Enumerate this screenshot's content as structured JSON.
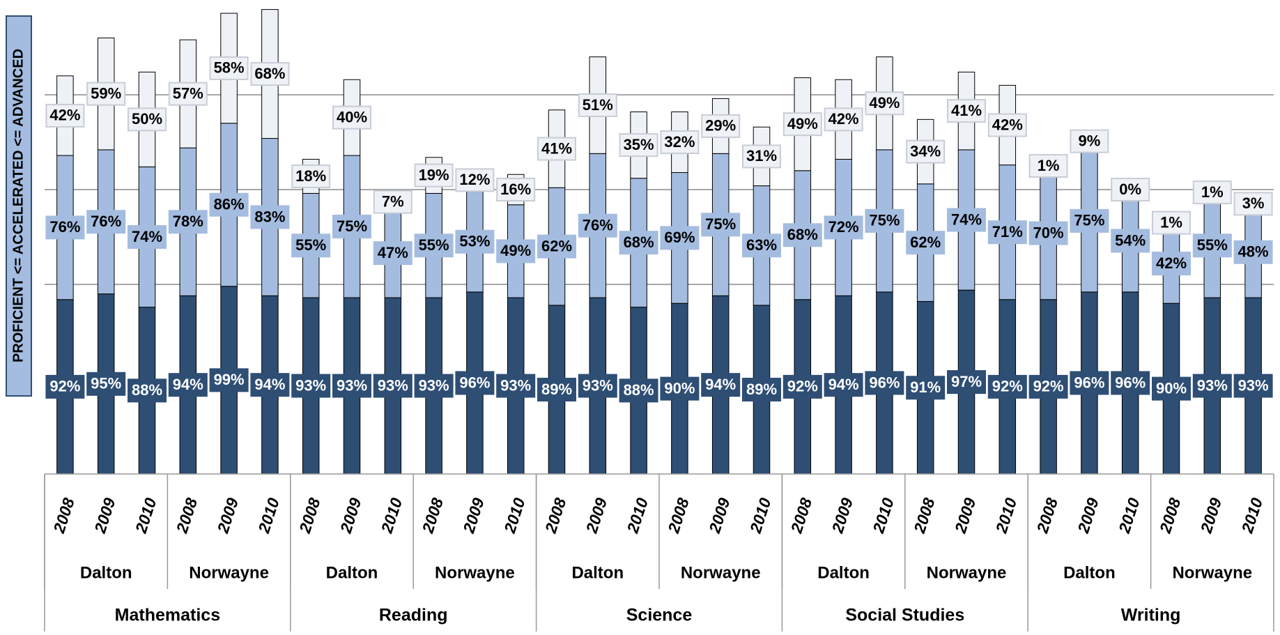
{
  "chart_data": {
    "type": "stacked_bar",
    "y_label": "PROFICIENT <= ACCELERATED <= ADVANCED",
    "categories": [
      "2008",
      "2009",
      "2010",
      "2008",
      "2009",
      "2010",
      "2008",
      "2009",
      "2010",
      "2008",
      "2009",
      "2010",
      "2008",
      "2009",
      "2010",
      "2008",
      "2009",
      "2010",
      "2008",
      "2009",
      "2010",
      "2008",
      "2009",
      "2010",
      "2008",
      "2009",
      "2010",
      "2008",
      "2009",
      "2010"
    ],
    "schools": [
      "Dalton",
      "Norwayne",
      "Dalton",
      "Norwayne",
      "Dalton",
      "Norwayne",
      "Dalton",
      "Norwayne",
      "Dalton",
      "Norwayne"
    ],
    "subjects": [
      "Mathematics",
      "Reading",
      "Science",
      "Social Studies",
      "Writing"
    ],
    "series": [
      {
        "color": "#2e4e74",
        "label_color": "#ffffff",
        "values": [
          92,
          95,
          88,
          94,
          99,
          94,
          93,
          93,
          93,
          93,
          96,
          93,
          89,
          93,
          88,
          90,
          94,
          89,
          92,
          94,
          96,
          91,
          97,
          92,
          92,
          96,
          96,
          90,
          93,
          93
        ],
        "value_labels": [
          "92%",
          "95%",
          "88%",
          "94%",
          "99%",
          "94%",
          "93%",
          "93%",
          "93%",
          "93%",
          "96%",
          "93%",
          "89%",
          "93%",
          "88%",
          "90%",
          "94%",
          "89%",
          "92%",
          "94%",
          "96%",
          "91%",
          "97%",
          "92%",
          "92%",
          "96%",
          "96%",
          "90%",
          "93%",
          "93%"
        ]
      },
      {
        "color": "#a4bcdf",
        "label_color": "#000000",
        "values": [
          76,
          76,
          74,
          78,
          86,
          83,
          55,
          75,
          47,
          55,
          53,
          49,
          62,
          76,
          68,
          69,
          75,
          63,
          68,
          72,
          75,
          62,
          74,
          71,
          70,
          75,
          54,
          42,
          55,
          48
        ],
        "value_labels": [
          "76%",
          "76%",
          "74%",
          "78%",
          "86%",
          "83%",
          "55%",
          "75%",
          "47%",
          "55%",
          "53%",
          "49%",
          "62%",
          "76%",
          "68%",
          "69%",
          "75%",
          "63%",
          "68%",
          "72%",
          "75%",
          "62%",
          "74%",
          "71%",
          "70%",
          "75%",
          "54%",
          "42%",
          "55%",
          "48%"
        ]
      },
      {
        "color": "#eef1f6",
        "label_color": "#000000",
        "values": [
          42,
          59,
          50,
          57,
          58,
          68,
          18,
          40,
          7,
          19,
          12,
          16,
          41,
          51,
          35,
          32,
          29,
          31,
          49,
          42,
          49,
          34,
          41,
          42,
          1,
          9,
          0,
          1,
          1,
          3
        ],
        "value_labels": [
          "42%",
          "59%",
          "50%",
          "57%",
          "58%",
          "68%",
          "18%",
          "40%",
          "7%",
          "19%",
          "12%",
          "16%",
          "41%",
          "51%",
          "35%",
          "32%",
          "29%",
          "31%",
          "49%",
          "42%",
          "49%",
          "34%",
          "41%",
          "42%",
          "1%",
          "9%",
          "0%",
          "1%",
          "1%",
          "3%"
        ]
      }
    ],
    "ylim": [
      0,
      250
    ],
    "yticks": [
      100,
      150,
      200
    ],
    "grid": true
  }
}
